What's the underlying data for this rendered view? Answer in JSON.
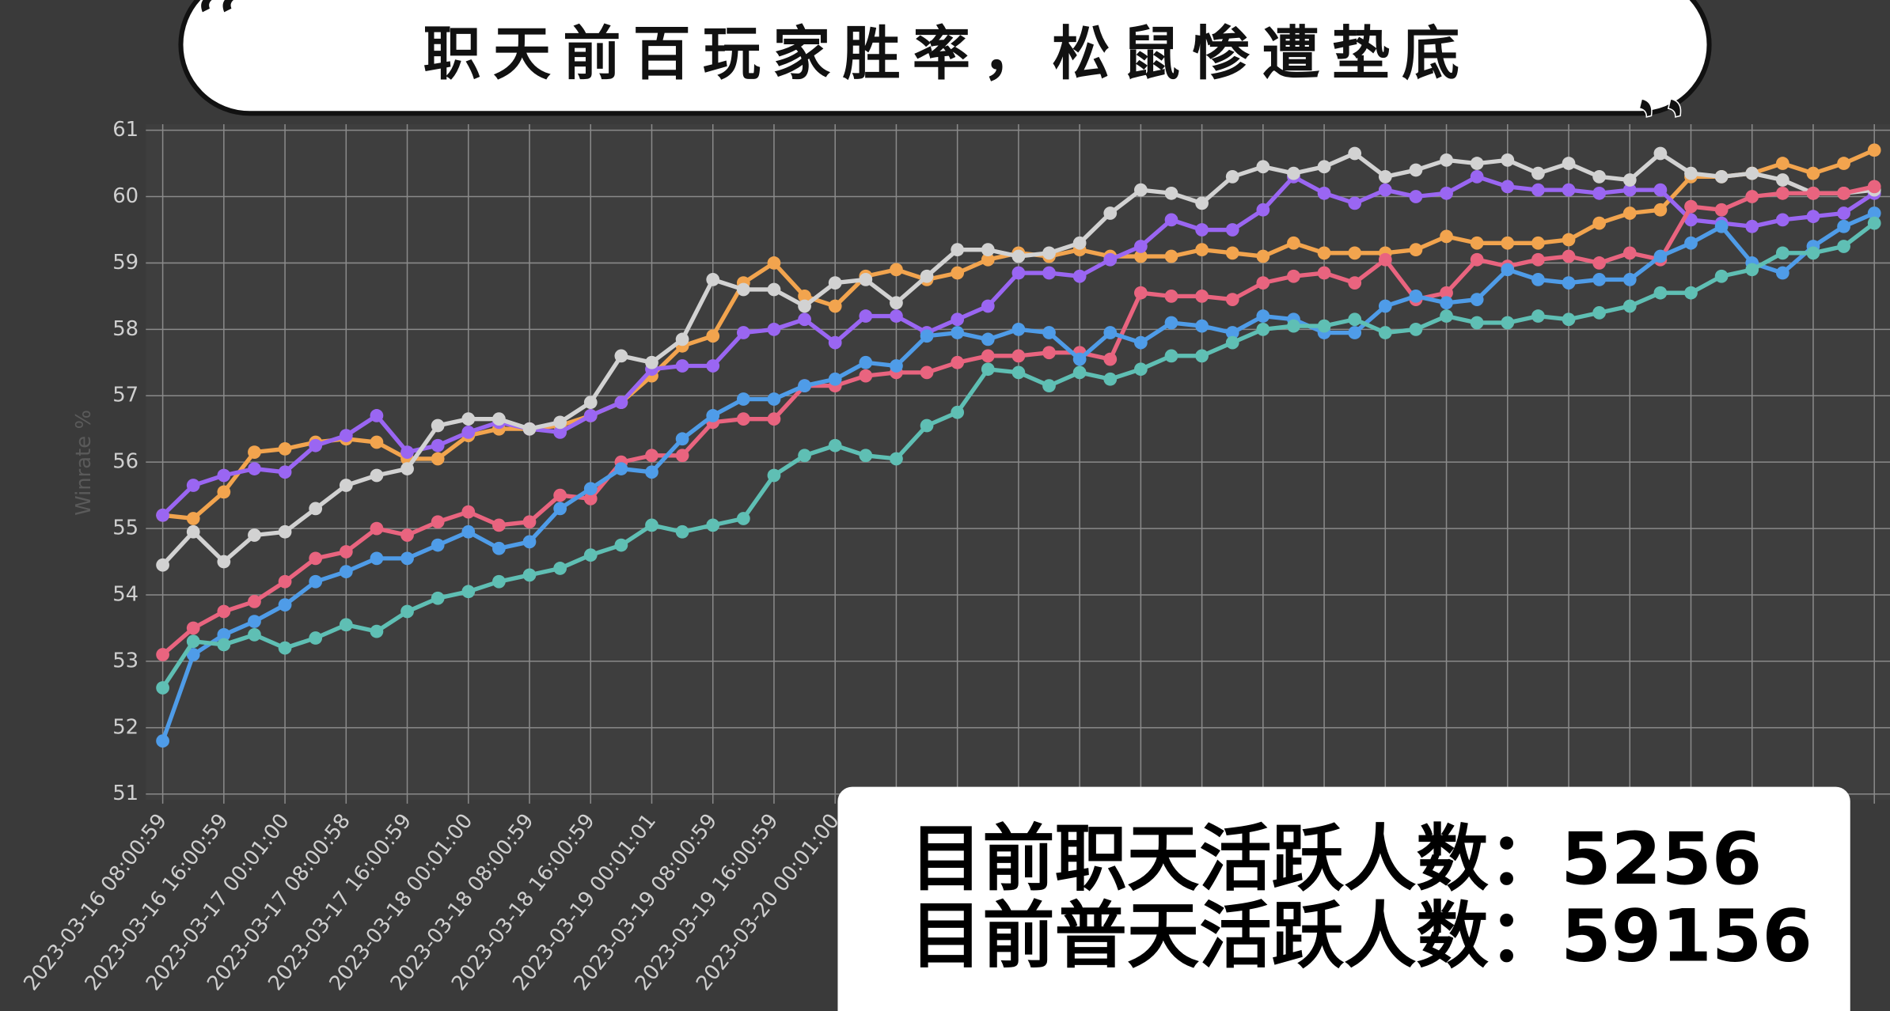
{
  "chart_data": {
    "type": "line",
    "title": "职天前百玩家胜率，松鼠惨遭垫底",
    "y_label": "Winrate %",
    "annotations": [
      "目前职天活跃人数：5256",
      "目前普天活跃人数：59156"
    ],
    "categories": [
      "2023-03-16 08:00:59",
      null,
      "2023-03-16 16:00:59",
      null,
      "2023-03-17 00:01:00",
      null,
      "2023-03-17 08:00:58",
      null,
      "2023-03-17 16:00:59",
      null,
      "2023-03-18 00:01:00",
      null,
      "2023-03-18 08:00:59",
      null,
      "2023-03-18 16:00:59",
      null,
      "2023-03-19 00:01:01",
      null,
      "2023-03-19 08:00:59",
      null,
      "2023-03-19 16:00:59",
      null,
      "2023-03-20 00:01:00",
      null,
      null,
      null,
      null,
      null,
      null,
      null,
      null,
      null,
      null,
      null,
      null,
      null,
      null,
      null,
      null,
      null,
      null,
      null,
      null,
      null,
      null,
      null,
      null,
      null,
      null,
      null,
      null,
      null,
      null,
      null,
      null,
      null,
      null
    ],
    "ylim": [
      51,
      61
    ],
    "yticks": [
      51,
      52,
      53,
      54,
      55,
      56,
      57,
      58,
      59,
      60,
      61
    ],
    "grid": true,
    "series": [
      {
        "color": "#f2a44e",
        "values": [
          55.2,
          55.15,
          55.55,
          56.15,
          56.2,
          56.3,
          56.35,
          56.3,
          56.05,
          56.05,
          56.4,
          56.5,
          56.5,
          56.55,
          56.7,
          56.9,
          57.3,
          57.75,
          57.9,
          58.7,
          59.0,
          58.5,
          58.35,
          58.8,
          58.9,
          58.75,
          58.85,
          59.05,
          59.15,
          59.1,
          59.2,
          59.1,
          59.1,
          59.1,
          59.2,
          59.15,
          59.1,
          59.3,
          59.15,
          59.15,
          59.15,
          59.2,
          59.4,
          59.3,
          59.3,
          59.3,
          59.35,
          59.6,
          59.75,
          59.8,
          60.3,
          60.3,
          60.35,
          60.5,
          60.35,
          60.5,
          60.7
        ]
      },
      {
        "color": "#9a66f2",
        "values": [
          55.2,
          55.65,
          55.8,
          55.9,
          55.85,
          56.25,
          56.4,
          56.7,
          56.15,
          56.25,
          56.45,
          56.6,
          56.5,
          56.45,
          56.7,
          56.9,
          57.4,
          57.45,
          57.45,
          57.95,
          58.0,
          58.15,
          57.8,
          58.2,
          58.2,
          57.95,
          58.15,
          58.35,
          58.85,
          58.85,
          58.8,
          59.05,
          59.25,
          59.65,
          59.5,
          59.5,
          59.8,
          60.3,
          60.05,
          59.9,
          60.1,
          60.0,
          60.05,
          60.3,
          60.15,
          60.1,
          60.1,
          60.05,
          60.1,
          60.1,
          59.65,
          59.6,
          59.55,
          59.65,
          59.7,
          59.75,
          60.05
        ]
      },
      {
        "color": "#d2d2d2",
        "values": [
          54.45,
          54.95,
          54.5,
          54.9,
          54.95,
          55.3,
          55.65,
          55.8,
          55.9,
          56.55,
          56.65,
          56.65,
          56.5,
          56.6,
          56.9,
          57.6,
          57.5,
          57.85,
          58.75,
          58.6,
          58.6,
          58.35,
          58.7,
          58.75,
          58.4,
          58.8,
          59.2,
          59.2,
          59.1,
          59.15,
          59.3,
          59.75,
          60.1,
          60.05,
          59.9,
          60.3,
          60.45,
          60.35,
          60.45,
          60.65,
          60.3,
          60.4,
          60.55,
          60.5,
          60.55,
          60.35,
          60.5,
          60.3,
          60.25,
          60.65,
          60.35,
          60.3,
          60.35,
          60.25,
          60.05,
          60.05,
          60.1
        ]
      },
      {
        "color": "#e9647f",
        "values": [
          53.1,
          53.5,
          53.75,
          53.9,
          54.2,
          54.55,
          54.65,
          55.0,
          54.9,
          55.1,
          55.25,
          55.05,
          55.1,
          55.5,
          55.45,
          56.0,
          56.1,
          56.1,
          56.6,
          56.65,
          56.65,
          57.15,
          57.15,
          57.3,
          57.35,
          57.35,
          57.5,
          57.6,
          57.6,
          57.65,
          57.65,
          57.55,
          58.55,
          58.5,
          58.5,
          58.45,
          58.7,
          58.8,
          58.85,
          58.7,
          59.05,
          58.45,
          58.55,
          59.05,
          58.95,
          59.05,
          59.1,
          59.0,
          59.15,
          59.05,
          59.85,
          59.8,
          60.0,
          60.05,
          60.05,
          60.05,
          60.15
        ]
      },
      {
        "color": "#4f9ce8",
        "values": [
          51.8,
          53.1,
          53.4,
          53.6,
          53.85,
          54.2,
          54.35,
          54.55,
          54.55,
          54.75,
          54.95,
          54.7,
          54.8,
          55.3,
          55.6,
          55.9,
          55.85,
          56.35,
          56.7,
          56.95,
          56.95,
          57.15,
          57.25,
          57.5,
          57.45,
          57.9,
          57.95,
          57.85,
          58.0,
          57.95,
          57.55,
          57.95,
          57.8,
          58.1,
          58.05,
          57.95,
          58.2,
          58.15,
          57.95,
          57.95,
          58.35,
          58.5,
          58.4,
          58.45,
          58.9,
          58.75,
          58.7,
          58.75,
          58.75,
          59.1,
          59.3,
          59.55,
          59.0,
          58.85,
          59.25,
          59.55,
          59.75
        ]
      },
      {
        "color": "#5fbfb4",
        "values": [
          52.6,
          53.3,
          53.25,
          53.4,
          53.2,
          53.35,
          53.55,
          53.45,
          53.75,
          53.95,
          54.05,
          54.2,
          54.3,
          54.4,
          54.6,
          54.75,
          55.05,
          54.95,
          55.05,
          55.15,
          55.8,
          56.1,
          56.25,
          56.1,
          56.05,
          56.55,
          56.75,
          57.4,
          57.35,
          57.15,
          57.35,
          57.25,
          57.4,
          57.6,
          57.6,
          57.8,
          58.0,
          58.05,
          58.05,
          58.15,
          57.95,
          58.0,
          58.2,
          58.1,
          58.1,
          58.2,
          58.15,
          58.25,
          58.35,
          58.55,
          58.55,
          58.8,
          58.9,
          59.15,
          59.15,
          59.25,
          59.6
        ]
      }
    ]
  }
}
